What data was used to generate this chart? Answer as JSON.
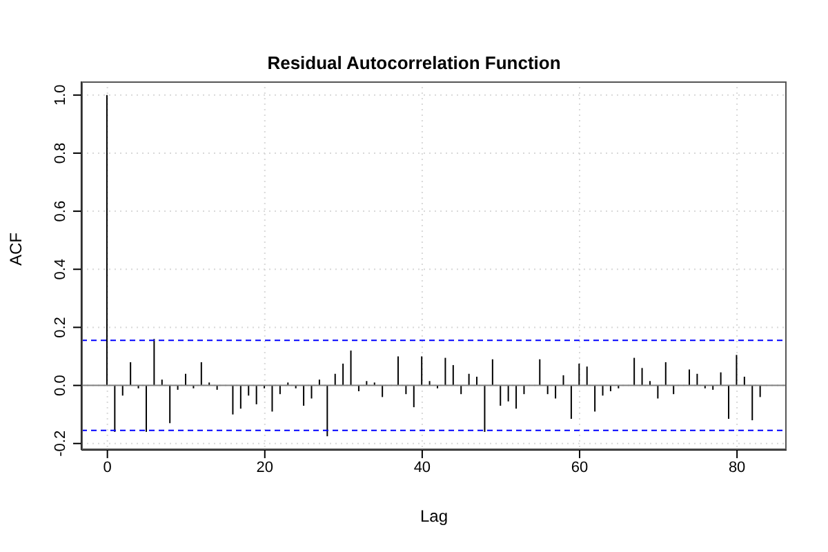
{
  "chart_data": {
    "type": "bar",
    "title": "Residual Autocorrelation Function",
    "xlabel": "Lag",
    "ylabel": "ACF",
    "x": [
      0,
      1,
      2,
      3,
      4,
      5,
      6,
      7,
      8,
      9,
      10,
      11,
      12,
      13,
      14,
      15,
      16,
      17,
      18,
      19,
      20,
      21,
      22,
      23,
      24,
      25,
      26,
      27,
      28,
      29,
      30,
      31,
      32,
      33,
      34,
      35,
      36,
      37,
      38,
      39,
      40,
      41,
      42,
      43,
      44,
      45,
      46,
      47,
      48,
      49,
      50,
      51,
      52,
      53,
      54,
      55,
      56,
      57,
      58,
      59,
      60,
      61,
      62,
      63,
      64,
      65,
      66,
      67,
      68,
      69,
      70,
      71,
      72,
      73,
      74,
      75,
      76,
      77,
      78,
      79,
      80,
      81,
      82,
      83
    ],
    "series": [
      {
        "color": "#000000",
        "values": [
          1.0,
          -0.16,
          -0.035,
          0.08,
          -0.01,
          -0.16,
          0.16,
          0.02,
          -0.13,
          -0.015,
          0.04,
          -0.01,
          0.08,
          0.01,
          -0.015,
          0.0,
          -0.1,
          -0.08,
          -0.035,
          -0.065,
          -0.01,
          -0.09,
          -0.03,
          0.01,
          -0.01,
          -0.07,
          -0.045,
          0.02,
          -0.175,
          0.04,
          0.075,
          0.12,
          -0.02,
          0.015,
          0.01,
          -0.04,
          0.0,
          0.1,
          -0.03,
          -0.075,
          0.1,
          0.015,
          -0.01,
          0.095,
          0.07,
          -0.03,
          0.04,
          0.03,
          -0.16,
          0.09,
          -0.07,
          -0.055,
          -0.08,
          -0.03,
          0.0,
          0.09,
          -0.03,
          -0.045,
          0.035,
          -0.115,
          0.075,
          0.065,
          -0.09,
          -0.035,
          -0.02,
          -0.01,
          0.0,
          0.095,
          0.06,
          0.015,
          -0.045,
          0.08,
          -0.03,
          0.0,
          0.055,
          0.04,
          -0.01,
          -0.015,
          0.045,
          -0.115,
          0.105,
          0.03,
          -0.12,
          -0.04
        ]
      }
    ],
    "xlim": [
      -3.3,
      86.3
    ],
    "xticks": [
      0,
      20,
      40,
      60,
      80
    ],
    "ylim": [
      -0.222,
      1.047
    ],
    "yticks": [
      -0.2,
      {
        "value": 0,
        "label": "0.0"
      },
      0.2,
      0.4,
      0.6,
      0.8,
      {
        "value": 1,
        "label": "1.0"
      }
    ],
    "ref_lines": [
      {
        "axis": "y",
        "value": 0,
        "color": "#808080",
        "line_style": "solid"
      },
      {
        "axis": "y",
        "value": 0.155,
        "color": "#0000ff",
        "line_style": "dashed"
      },
      {
        "axis": "y",
        "value": -0.155,
        "color": "#0000ff",
        "line_style": "dashed"
      }
    ],
    "grid": true
  }
}
